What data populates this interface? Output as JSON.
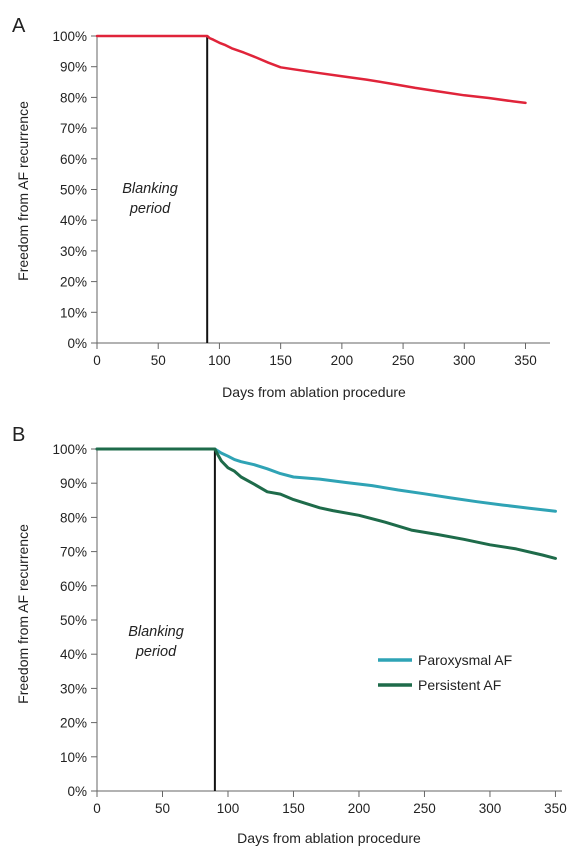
{
  "chart_data": [
    {
      "panel": "A",
      "type": "line",
      "xlabel": "Days from ablation procedure",
      "ylabel": "Freedom from AF recurrence",
      "xlim": [
        0,
        370
      ],
      "ylim": [
        0,
        100
      ],
      "xticks": [
        "0",
        "50",
        "100",
        "150",
        "200",
        "250",
        "300",
        "350"
      ],
      "yticks": [
        "0%",
        "10%",
        "20%",
        "30%",
        "40%",
        "50%",
        "60%",
        "70%",
        "80%",
        "90%",
        "100%"
      ],
      "blanking_end_day": 90,
      "annotation": [
        "Blanking",
        "period"
      ],
      "series": [
        {
          "color": "#e0243a",
          "x": [
            0,
            90,
            92,
            95,
            100,
            105,
            110,
            120,
            130,
            140,
            150,
            160,
            180,
            200,
            220,
            240,
            260,
            280,
            300,
            320,
            340,
            350
          ],
          "y": [
            100,
            100,
            99.3,
            98.8,
            97.8,
            97.0,
            96.0,
            94.6,
            93.0,
            91.3,
            89.8,
            89.2,
            88.0,
            86.9,
            85.8,
            84.5,
            83.1,
            81.9,
            80.7,
            79.8,
            78.7,
            78.2
          ]
        }
      ]
    },
    {
      "panel": "B",
      "type": "line",
      "xlabel": "Days from ablation procedure",
      "ylabel": "Freedom from AF recurrence",
      "xlim": [
        0,
        355
      ],
      "ylim": [
        0,
        100
      ],
      "xticks": [
        "0",
        "50",
        "100",
        "150",
        "200",
        "250",
        "300",
        "350"
      ],
      "yticks": [
        "0%",
        "10%",
        "20%",
        "30%",
        "40%",
        "50%",
        "60%",
        "70%",
        "80%",
        "90%",
        "100%"
      ],
      "blanking_end_day": 90,
      "annotation": [
        "Blanking",
        "period"
      ],
      "legend_position": "center-right",
      "series": [
        {
          "name": "Paroxysmal AF",
          "color": "#2fa3b5",
          "x": [
            0,
            90,
            92,
            95,
            100,
            105,
            110,
            120,
            130,
            140,
            150,
            170,
            190,
            210,
            230,
            250,
            270,
            290,
            310,
            330,
            350
          ],
          "y": [
            100,
            100,
            99.5,
            98.8,
            97.9,
            96.9,
            96.3,
            95.4,
            94.2,
            92.8,
            91.8,
            91.2,
            90.2,
            89.3,
            88.0,
            86.9,
            85.7,
            84.6,
            83.6,
            82.7,
            81.8
          ]
        },
        {
          "name": "Persistent AF",
          "color": "#1e6b4a",
          "x": [
            0,
            90,
            92,
            95,
            100,
            105,
            110,
            120,
            130,
            140,
            150,
            160,
            170,
            180,
            200,
            220,
            240,
            260,
            280,
            300,
            320,
            340,
            350
          ],
          "y": [
            100,
            100,
            98.5,
            96.5,
            94.5,
            93.5,
            91.8,
            89.7,
            87.5,
            86.8,
            85.2,
            84.0,
            82.8,
            82.0,
            80.6,
            78.6,
            76.3,
            75.0,
            73.6,
            72.0,
            70.8,
            69.0,
            68.0
          ]
        }
      ]
    }
  ]
}
